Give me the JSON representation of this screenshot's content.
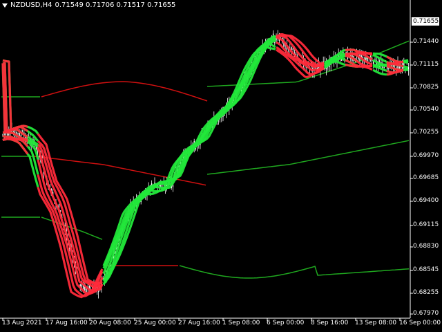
{
  "header": {
    "symbol": "NZDUSD,H4",
    "ohlc": "0.71549 0.71706 0.71517 0.71655"
  },
  "price_axis": {
    "labels": [
      "0.71655",
      "0.71440",
      "0.71115",
      "0.70825",
      "0.70540",
      "0.70255",
      "0.69970",
      "0.69685",
      "0.69400",
      "0.69115",
      "0.68830",
      "0.68545",
      "0.68255",
      "0.67970"
    ],
    "current_price": "0.71655"
  },
  "time_axis": {
    "labels": [
      "13 Aug 2021",
      "17 Aug 16:00",
      "20 Aug 08:00",
      "25 Aug 00:00",
      "27 Aug 16:00",
      "1 Sep 08:00",
      "6 Sep 00:00",
      "8 Sep 16:00",
      "13 Sep 08:00",
      "16 Sep 00:00"
    ]
  },
  "colors": {
    "background": "#000000",
    "candle": "#ffffff",
    "bull_band": "#22e83a",
    "bear_band": "#ff2a3a",
    "envelope_up": "#1fa81f",
    "envelope_down": "#d01010",
    "text": "#ffffff"
  },
  "chart_data": {
    "type": "line",
    "title": "NZDUSD,H4",
    "ylim": [
      0.6789,
      0.7185
    ],
    "x": [
      "13 Aug 2021",
      "17 Aug 16:00",
      "20 Aug 08:00",
      "25 Aug 00:00",
      "27 Aug 16:00",
      "1 Sep 08:00",
      "6 Sep 00:00",
      "8 Sep 16:00",
      "13 Sep 08:00",
      "16 Sep 00:00"
    ],
    "series": [
      {
        "values": [
          0.702,
          0.699,
          0.683,
          0.693,
          0.7,
          0.709,
          0.715,
          0.7125,
          0.7115,
          0.711
        ]
      }
    ],
    "grid": false,
    "legend": "none"
  }
}
